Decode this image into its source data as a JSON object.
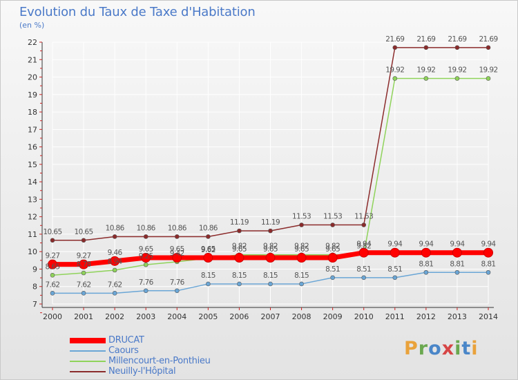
{
  "page": {
    "title": "Evolution du Taux de Taxe d'Habitation",
    "subtitle": "(en %)"
  },
  "brand": {
    "letters": [
      "P",
      "r",
      "o",
      "x",
      "i",
      "t",
      "i"
    ],
    "colors": [
      "#e9a23b",
      "#6aa84f",
      "#4a86c8",
      "#d64545",
      "#6aa84f",
      "#4a86c8",
      "#e9a23b"
    ]
  },
  "chart_data": {
    "type": "line",
    "x": [
      "2000",
      "2001",
      "2002",
      "2003",
      "2004",
      "2005",
      "2006",
      "2007",
      "2008",
      "2009",
      "2010",
      "2011",
      "2012",
      "2013",
      "2014"
    ],
    "ylim": [
      7,
      22
    ],
    "yticks": [
      "7",
      "8",
      "9",
      "10",
      "11",
      "12",
      "13",
      "14",
      "15",
      "16",
      "17",
      "18",
      "19",
      "20",
      "21",
      "22"
    ],
    "series": [
      {
        "name": "DRUCAT",
        "color": "#ff0000",
        "values": [
          9.27,
          9.27,
          9.46,
          9.65,
          9.65,
          9.65,
          9.65,
          9.65,
          9.65,
          9.65,
          9.94,
          9.94,
          9.94,
          9.94,
          9.94
        ],
        "labels": [
          "9.27",
          "9.27",
          "9.46",
          "9.65",
          "9.65",
          "9.65",
          "9.65",
          "9.65",
          "9.65",
          "9.65",
          "9.94",
          "9.94",
          "9.94",
          "9.94",
          "9.94"
        ]
      },
      {
        "name": "Caours",
        "color": "#6aa6d6",
        "values": [
          7.62,
          7.62,
          7.62,
          7.76,
          7.76,
          8.15,
          8.15,
          8.15,
          8.15,
          8.51,
          8.51,
          8.51,
          8.81,
          8.81,
          8.81
        ],
        "labels": [
          "7.62",
          "7.62",
          "7.62",
          "7.76",
          "7.76",
          "8.15",
          "8.15",
          "8.15",
          "8.15",
          "8.51",
          "8.51",
          "8.51",
          "8.81",
          "8.81",
          "8.81"
        ]
      },
      {
        "name": "Millencourt-en-Ponthieu",
        "color": "#8fd35a",
        "values": [
          8.65,
          8.78,
          8.94,
          9.25,
          9.42,
          9.62,
          9.82,
          9.82,
          9.82,
          9.82,
          9.82,
          19.92,
          19.92,
          19.92,
          19.92
        ],
        "labels": [
          "8.65",
          "8.78",
          "8.94",
          "9.25",
          "9.42",
          "9.62",
          "9.82",
          "9.82",
          "9.82",
          "9.82",
          "9.82",
          "19.92",
          "19.92",
          "19.92",
          "19.92"
        ]
      },
      {
        "name": "Neuilly-l'Hôpital",
        "color": "#8b2b2b",
        "values": [
          10.65,
          10.65,
          10.86,
          10.86,
          10.86,
          10.86,
          11.19,
          11.19,
          11.53,
          11.53,
          11.53,
          21.69,
          21.69,
          21.69,
          21.69
        ],
        "labels": [
          "10.65",
          "10.65",
          "10.86",
          "10.86",
          "10.86",
          "10.86",
          "11.19",
          "11.19",
          "11.53",
          "11.53",
          "11.53",
          "21.69",
          "21.69",
          "21.69",
          "21.69"
        ]
      }
    ]
  }
}
